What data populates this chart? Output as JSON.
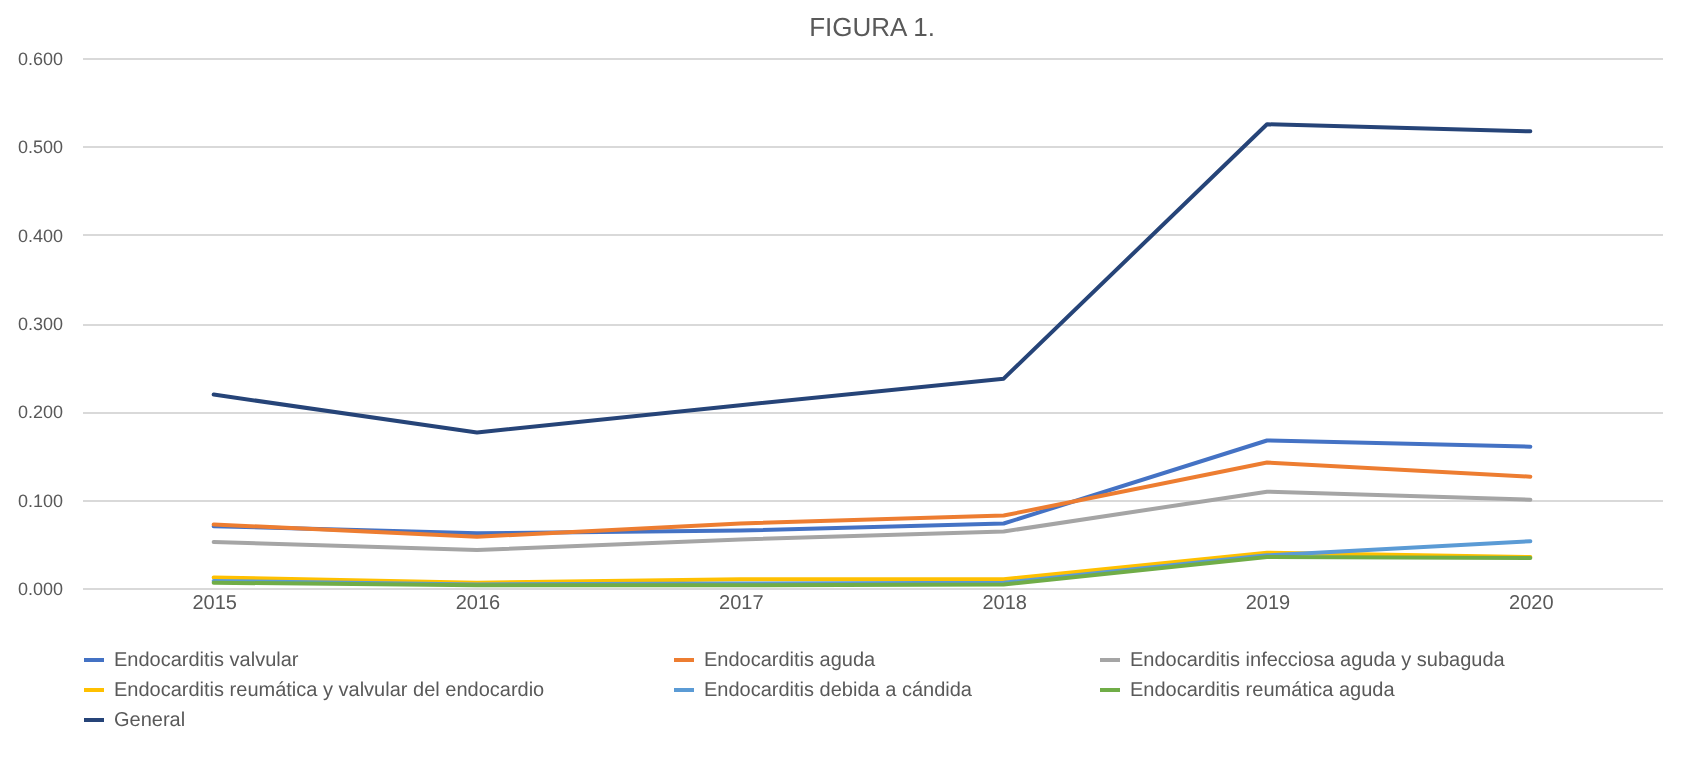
{
  "chart_data": {
    "type": "line",
    "title": "FIGURA 1.",
    "categories": [
      "2015",
      "2016",
      "2017",
      "2018",
      "2019",
      "2020"
    ],
    "ylim": [
      0,
      0.6
    ],
    "yticks": [
      {
        "value": 0,
        "label": "0.000"
      },
      {
        "value": 0.1,
        "label": "0.100"
      },
      {
        "value": 0.2,
        "label": "0.200"
      },
      {
        "value": 0.3,
        "label": "0.300"
      },
      {
        "value": 0.4,
        "label": "0.400"
      },
      {
        "value": 0.5,
        "label": "0.500"
      },
      {
        "value": 0.6,
        "label": "0.600"
      }
    ],
    "grid": "y",
    "legend": "bottom",
    "marker": "none",
    "line_style": "solid",
    "series": [
      {
        "name": "Endocarditis valvular",
        "color": "#4472c4",
        "values": [
          0.07,
          0.062,
          0.065,
          0.073,
          0.167,
          0.16
        ]
      },
      {
        "name": "Endocarditis aguda",
        "color": "#ed7d31",
        "values": [
          0.072,
          0.058,
          0.073,
          0.082,
          0.142,
          0.126
        ]
      },
      {
        "name": "Endocarditis infecciosa aguda y subaguda",
        "color": "#a5a5a5",
        "values": [
          0.052,
          0.043,
          0.055,
          0.064,
          0.109,
          0.1
        ]
      },
      {
        "name": "Endocarditis reumática y valvular del endocardio",
        "color": "#ffc000",
        "values": [
          0.012,
          0.006,
          0.01,
          0.01,
          0.04,
          0.035
        ]
      },
      {
        "name": "Endocarditis debida a cándida",
        "color": "#5b9bd5",
        "values": [
          0.008,
          0.004,
          0.005,
          0.006,
          0.037,
          0.053
        ]
      },
      {
        "name": "Endocarditis reumática aguda",
        "color": "#70ad47",
        "values": [
          0.006,
          0.003,
          0.003,
          0.004,
          0.035,
          0.034
        ]
      },
      {
        "name": "General",
        "color": "#264478",
        "values": [
          0.219,
          0.176,
          0.207,
          0.237,
          0.525,
          0.517
        ]
      }
    ]
  }
}
